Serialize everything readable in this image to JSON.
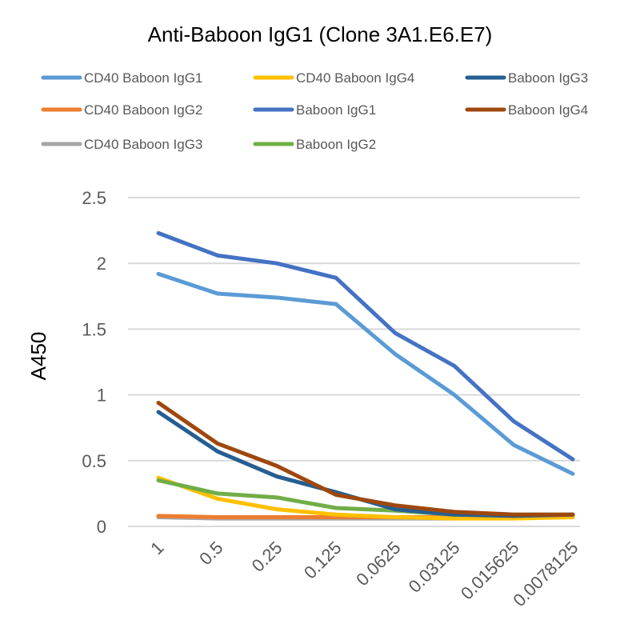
{
  "chart_data": {
    "type": "line",
    "title": "Anti-Baboon IgG1 (Clone 3A1.E6.E7)",
    "xlabel": "",
    "ylabel": "A450",
    "ylim": [
      0,
      2.5
    ],
    "yticks": [
      "0",
      "0.5",
      "1",
      "1.5",
      "2",
      "2.5"
    ],
    "ytick_values": [
      0,
      0.5,
      1,
      1.5,
      2,
      2.5
    ],
    "grid": true,
    "legend_position": "top",
    "categories": [
      "1",
      "0.5",
      "0.25",
      "0.125",
      "0.0625",
      "0.03125",
      "0.015625",
      "0.0078125"
    ],
    "series": [
      {
        "name": "CD40 Baboon IgG1",
        "color": "#5B9BD5",
        "values": [
          1.92,
          1.77,
          1.74,
          1.69,
          1.31,
          1.0,
          0.62,
          0.4
        ]
      },
      {
        "name": "CD40 Baboon IgG4",
        "color": "#FFC000",
        "values": [
          0.37,
          0.21,
          0.13,
          0.09,
          0.07,
          0.06,
          0.06,
          0.07
        ]
      },
      {
        "name": "Baboon IgG3",
        "color": "#255E91",
        "values": [
          0.87,
          0.57,
          0.38,
          0.26,
          0.13,
          0.09,
          0.08,
          0.09
        ]
      },
      {
        "name": "CD40 Baboon IgG2",
        "color": "#ED7D31",
        "values": [
          0.08,
          0.07,
          0.07,
          0.07,
          0.07,
          0.07,
          0.07,
          0.08
        ]
      },
      {
        "name": "Baboon IgG1",
        "color": "#4472C4",
        "values": [
          2.23,
          2.06,
          2.0,
          1.89,
          1.47,
          1.22,
          0.8,
          0.51
        ]
      },
      {
        "name": "Baboon IgG4",
        "color": "#9E480E",
        "values": [
          0.94,
          0.63,
          0.46,
          0.24,
          0.16,
          0.11,
          0.09,
          0.09
        ]
      },
      {
        "name": "CD40 Baboon IgG3",
        "color": "#A5A5A5",
        "values": [
          0.07,
          0.06,
          0.06,
          0.06,
          0.06,
          0.06,
          0.07,
          0.08
        ]
      },
      {
        "name": "Baboon IgG2",
        "color": "#70AD47",
        "values": [
          0.35,
          0.25,
          0.22,
          0.14,
          0.12,
          0.09,
          0.09,
          0.09
        ]
      }
    ]
  }
}
